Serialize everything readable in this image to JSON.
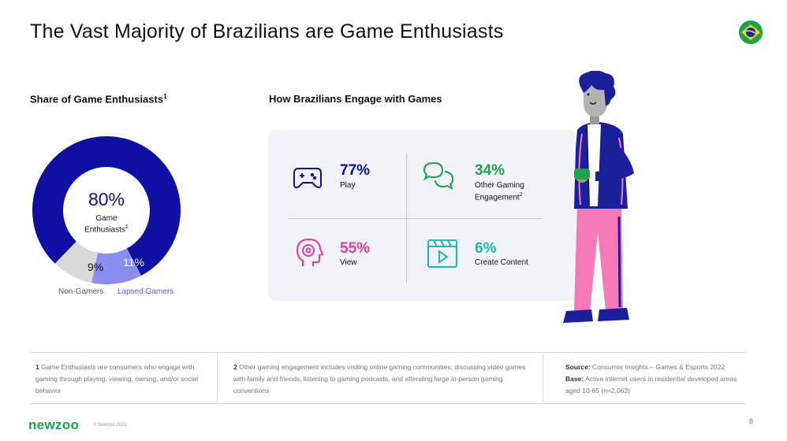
{
  "title": "The Vast Majority of Brazilians are Game Enthusiasts",
  "left_section": {
    "title": "Share of Game Enthusiasts",
    "title_sup": "1",
    "center_pct": "80%",
    "center_label_1": "Game",
    "center_label_2": "Enthusiasts",
    "center_sup": "1",
    "non_gamers_pct": "9%",
    "lapsed_pct": "11%",
    "legend_non_gamers": "Non-Gamers",
    "legend_lapsed": "Lapsed Gamers"
  },
  "chart_data": {
    "type": "pie",
    "categories": [
      "Game Enthusiasts",
      "Non-Gamers",
      "Lapsed Gamers"
    ],
    "values": [
      80,
      9,
      11
    ],
    "colors": [
      "#0f0fa3",
      "#d9d9d9",
      "#8b8ef0"
    ],
    "title": "Share of Game Enthusiasts"
  },
  "right_section": {
    "title": "How Brazilians Engage with Games",
    "stats": [
      {
        "pct": "77%",
        "label": "Play",
        "label2": "",
        "sup": "",
        "color": "#0f0f9f",
        "icon": "gamepad-icon"
      },
      {
        "pct": "34%",
        "label": "Other Gaming",
        "label2": "Engagement",
        "sup": "2",
        "color": "#1ea24a",
        "icon": "chat-bubbles-icon"
      },
      {
        "pct": "55%",
        "label": "View",
        "label2": "",
        "sup": "",
        "color": "#e23d9b",
        "icon": "head-eye-icon"
      },
      {
        "pct": "6%",
        "label": "Create Content",
        "label2": "",
        "sup": "",
        "color": "#21b9ad",
        "icon": "video-clapper-icon"
      }
    ]
  },
  "footer": {
    "note1_num": "1",
    "note1": "Game Enthusiasts are consumers who engage with gaming through playing, viewing, owning, and/or social behavior",
    "note2_num": "2",
    "note2": "Other gaming engagement includes visiting online gaming communities, discussing video games with family and friends, listening to gaming podcasts, and attending large in-person gaming conventions",
    "source_label": "Source:",
    "source": "Consumer Insights – Games & Esports 2022",
    "base_label": "Base:",
    "base": "Active internet users in residential developed areas aged 10-65 (n=2,063)"
  },
  "logo": "newzoo",
  "copyright": "© Newzoo 2022",
  "page_number": "8"
}
